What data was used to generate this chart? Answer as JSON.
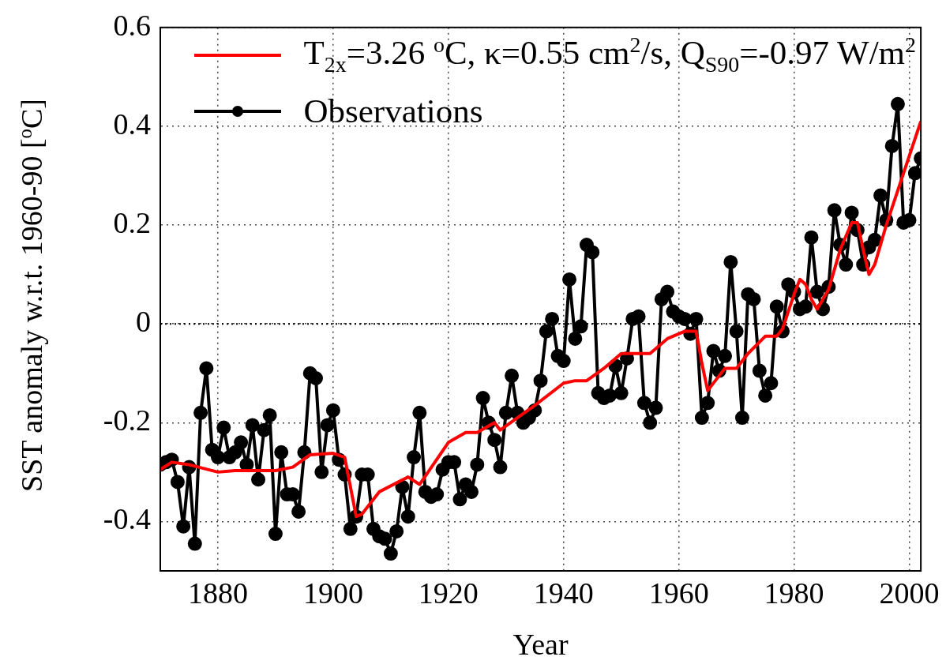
{
  "chart_data": {
    "type": "line",
    "xlabel": "Year",
    "ylabel": "SST anomaly w.r.t. 1960-90 [$^{o}$C]",
    "xlim": [
      1870,
      2002
    ],
    "xticks": [
      1880,
      1900,
      1920,
      1940,
      1960,
      1980,
      2000
    ],
    "ylim": [
      -0.5,
      0.6
    ],
    "yticks": [
      -0.4,
      -0.2,
      0,
      0.2,
      0.4,
      0.6
    ],
    "grid": true,
    "legend": "top",
    "ref_lines": [
      {
        "axis": "y",
        "value": 0,
        "color": "#000000",
        "line_style": "dotted"
      }
    ],
    "series": [
      {
        "name": "T$_{2x}$=3.26 $^{o}$C, κ=0.55 cm$^{2}$/s, Q$_{S90}$=-0.97 W/m$^{2}$",
        "color": "#ff0000",
        "marker": "none",
        "x": [
          1870,
          1872,
          1875,
          1880,
          1883,
          1890,
          1893,
          1896,
          1900,
          1902,
          1904,
          1905,
          1908,
          1913,
          1915,
          1920,
          1923,
          1925,
          1928,
          1929,
          1935,
          1940,
          1942,
          1944,
          1947,
          1950,
          1953,
          1955,
          1958,
          1961,
          1963,
          1964,
          1965,
          1967,
          1968,
          1970,
          1972,
          1975,
          1977,
          1978,
          1980,
          1981,
          1982,
          1983,
          1984,
          1986,
          1988,
          1990,
          1991,
          1992,
          1993,
          1994,
          1996,
          2000,
          2002
        ],
        "values": [
          -0.295,
          -0.28,
          -0.285,
          -0.3,
          -0.297,
          -0.297,
          -0.29,
          -0.265,
          -0.262,
          -0.27,
          -0.39,
          -0.385,
          -0.34,
          -0.31,
          -0.325,
          -0.24,
          -0.22,
          -0.22,
          -0.2,
          -0.215,
          -0.165,
          -0.12,
          -0.115,
          -0.115,
          -0.09,
          -0.06,
          -0.06,
          -0.06,
          -0.03,
          -0.015,
          -0.015,
          -0.08,
          -0.135,
          -0.105,
          -0.09,
          -0.09,
          -0.06,
          -0.025,
          -0.025,
          -0.01,
          0.06,
          0.09,
          0.08,
          0.05,
          0.03,
          0.07,
          0.15,
          0.205,
          0.205,
          0.15,
          0.1,
          0.12,
          0.2,
          0.34,
          0.41
        ]
      },
      {
        "name": "Observations",
        "color": "#000000",
        "marker": "circle",
        "x": [
          1870,
          1871,
          1872,
          1873,
          1874,
          1875,
          1876,
          1877,
          1878,
          1879,
          1880,
          1881,
          1882,
          1883,
          1884,
          1885,
          1886,
          1887,
          1888,
          1889,
          1890,
          1891,
          1892,
          1893,
          1894,
          1895,
          1896,
          1897,
          1898,
          1899,
          1900,
          1901,
          1902,
          1903,
          1904,
          1905,
          1906,
          1907,
          1908,
          1909,
          1910,
          1911,
          1912,
          1913,
          1914,
          1915,
          1916,
          1917,
          1918,
          1919,
          1920,
          1921,
          1922,
          1923,
          1924,
          1925,
          1926,
          1927,
          1928,
          1929,
          1930,
          1931,
          1932,
          1933,
          1934,
          1935,
          1936,
          1937,
          1938,
          1939,
          1940,
          1941,
          1942,
          1943,
          1944,
          1945,
          1946,
          1947,
          1948,
          1949,
          1950,
          1951,
          1952,
          1953,
          1954,
          1955,
          1956,
          1957,
          1958,
          1959,
          1960,
          1961,
          1962,
          1963,
          1964,
          1965,
          1966,
          1967,
          1968,
          1969,
          1970,
          1971,
          1972,
          1973,
          1974,
          1975,
          1976,
          1977,
          1978,
          1979,
          1980,
          1981,
          1982,
          1983,
          1984,
          1985,
          1986,
          1987,
          1988,
          1989,
          1990,
          1991,
          1992,
          1993,
          1994,
          1995,
          1996,
          1997,
          1998,
          1999,
          2000,
          2001,
          2002
        ],
        "values": [
          -0.285,
          -0.28,
          -0.275,
          -0.32,
          -0.41,
          -0.29,
          -0.445,
          -0.18,
          -0.09,
          -0.255,
          -0.27,
          -0.21,
          -0.27,
          -0.26,
          -0.24,
          -0.285,
          -0.205,
          -0.315,
          -0.215,
          -0.185,
          -0.425,
          -0.26,
          -0.345,
          -0.345,
          -0.38,
          -0.26,
          -0.1,
          -0.11,
          -0.3,
          -0.205,
          -0.175,
          -0.275,
          -0.305,
          -0.415,
          -0.39,
          -0.305,
          -0.305,
          -0.415,
          -0.43,
          -0.435,
          -0.465,
          -0.42,
          -0.33,
          -0.39,
          -0.27,
          -0.18,
          -0.34,
          -0.35,
          -0.345,
          -0.295,
          -0.28,
          -0.28,
          -0.355,
          -0.325,
          -0.34,
          -0.285,
          -0.15,
          -0.2,
          -0.235,
          -0.29,
          -0.18,
          -0.105,
          -0.18,
          -0.2,
          -0.19,
          -0.175,
          -0.115,
          -0.015,
          0.01,
          -0.065,
          -0.075,
          0.09,
          -0.03,
          -0.005,
          0.16,
          0.145,
          -0.14,
          -0.15,
          -0.145,
          -0.085,
          -0.14,
          -0.07,
          0.01,
          0.015,
          -0.16,
          -0.2,
          -0.17,
          0.05,
          0.065,
          0.025,
          0.015,
          0.01,
          -0.02,
          0.01,
          -0.19,
          -0.16,
          -0.055,
          -0.095,
          -0.065,
          0.125,
          -0.015,
          -0.19,
          0.06,
          0.05,
          -0.095,
          -0.145,
          -0.12,
          0.035,
          -0.015,
          0.08,
          0.065,
          0.03,
          0.035,
          0.175,
          0.065,
          0.03,
          0.075,
          0.23,
          0.16,
          0.12,
          0.225,
          0.19,
          0.12,
          0.155,
          0.17,
          0.26,
          0.21,
          0.36,
          0.445,
          0.205,
          0.21,
          0.305,
          0.335
        ]
      }
    ]
  }
}
